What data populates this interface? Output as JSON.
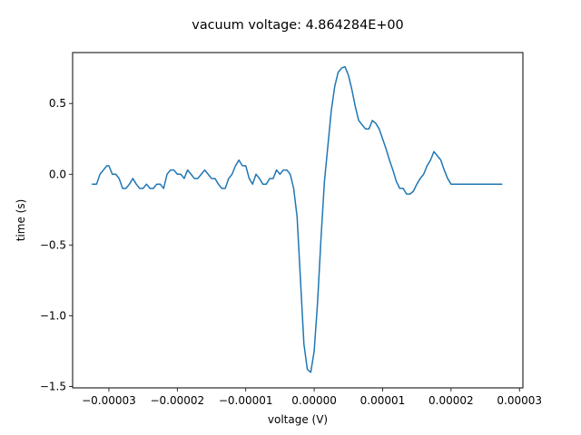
{
  "chart_data": {
    "type": "line",
    "title": "vacuum voltage: 4.864284E+00",
    "xlabel": "voltage (V)",
    "ylabel": "time (s)",
    "xlim": [
      -3.53e-05,
      3.05e-05
    ],
    "ylim": [
      -1.51,
      0.86
    ],
    "xticks": [
      -3e-05,
      -2e-05,
      -1e-05,
      0.0,
      1e-05,
      2e-05,
      3e-05
    ],
    "xtick_labels": [
      "−0.00003",
      "−0.00002",
      "−0.00001",
      "0.00000",
      "0.00001",
      "0.00002",
      "0.00003"
    ],
    "yticks": [
      -1.5,
      -1.0,
      -0.5,
      0.0,
      0.5
    ],
    "ytick_labels": [
      "−1.5",
      "−1.0",
      "−0.5",
      "0.0",
      "0.5"
    ],
    "grid": false,
    "colors": {
      "line": "#1f77b4",
      "axes": "#000000",
      "background": "#ffffff"
    },
    "series": [
      {
        "x": [
          -3.25e-05,
          -3.18e-05,
          -3.13e-05,
          -3.08e-05,
          -3.03e-05,
          -3e-05,
          -2.95e-05,
          -2.9e-05,
          -2.85e-05,
          -2.8e-05,
          -2.75e-05,
          -2.7e-05,
          -2.65e-05,
          -2.6e-05,
          -2.55e-05,
          -2.5e-05,
          -2.45e-05,
          -2.4e-05,
          -2.35e-05,
          -2.3e-05,
          -2.25e-05,
          -2.2e-05,
          -2.15e-05,
          -2.1e-05,
          -2.05e-05,
          -2e-05,
          -1.95e-05,
          -1.9e-05,
          -1.85e-05,
          -1.8e-05,
          -1.75e-05,
          -1.7e-05,
          -1.65e-05,
          -1.6e-05,
          -1.55e-05,
          -1.5e-05,
          -1.45e-05,
          -1.4e-05,
          -1.35e-05,
          -1.3e-05,
          -1.25e-05,
          -1.2e-05,
          -1.15e-05,
          -1.1e-05,
          -1.05e-05,
          -1e-05,
          -9.5e-06,
          -9e-06,
          -8.5e-06,
          -8e-06,
          -7.5e-06,
          -7e-06,
          -6.5e-06,
          -6e-06,
          -5.5e-06,
          -5e-06,
          -4.5e-06,
          -4e-06,
          -3.5e-06,
          -3e-06,
          -2.5e-06,
          -2e-06,
          -1.5e-06,
          -1e-06,
          -5e-07,
          0.0,
          5e-07,
          1e-06,
          1.5e-06,
          2e-06,
          2.5e-06,
          3e-06,
          3.5e-06,
          4e-06,
          4.5e-06,
          5e-06,
          5.5e-06,
          6e-06,
          6.5e-06,
          7e-06,
          7.5e-06,
          8e-06,
          8.5e-06,
          9e-06,
          9.5e-06,
          1e-05,
          1.05e-05,
          1.1e-05,
          1.15e-05,
          1.2e-05,
          1.25e-05,
          1.3e-05,
          1.35e-05,
          1.4e-05,
          1.45e-05,
          1.5e-05,
          1.55e-05,
          1.6e-05,
          1.65e-05,
          1.7e-05,
          1.75e-05,
          1.8e-05,
          1.85e-05,
          1.9e-05,
          1.95e-05,
          2e-05,
          2.05e-05,
          2.1e-05,
          2.15e-05,
          2.2e-05,
          2.25e-05,
          2.3e-05,
          2.35e-05,
          2.4e-05,
          2.45e-05,
          2.5e-05,
          2.55e-05,
          2.6e-05,
          2.65e-05,
          2.7e-05,
          2.75e-05
        ],
        "y": [
          -0.07,
          -0.07,
          0.0,
          0.03,
          0.06,
          0.06,
          0.0,
          0.0,
          -0.03,
          -0.1,
          -0.1,
          -0.07,
          -0.03,
          -0.07,
          -0.1,
          -0.1,
          -0.07,
          -0.1,
          -0.1,
          -0.07,
          -0.07,
          -0.1,
          0.0,
          0.03,
          0.03,
          0.0,
          0.0,
          -0.03,
          0.03,
          0.0,
          -0.03,
          -0.03,
          0.0,
          0.03,
          0.0,
          -0.03,
          -0.03,
          -0.07,
          -0.1,
          -0.1,
          -0.03,
          0.0,
          0.06,
          0.1,
          0.06,
          0.06,
          -0.03,
          -0.07,
          0.0,
          -0.03,
          -0.07,
          -0.07,
          -0.03,
          -0.03,
          0.03,
          0.0,
          0.03,
          0.03,
          0.0,
          -0.1,
          -0.3,
          -0.75,
          -1.2,
          -1.38,
          -1.4,
          -1.25,
          -0.9,
          -0.45,
          -0.05,
          0.2,
          0.45,
          0.62,
          0.72,
          0.75,
          0.76,
          0.7,
          0.6,
          0.48,
          0.38,
          0.35,
          0.32,
          0.32,
          0.38,
          0.36,
          0.32,
          0.25,
          0.18,
          0.1,
          0.03,
          -0.05,
          -0.1,
          -0.1,
          -0.14,
          -0.14,
          -0.12,
          -0.07,
          -0.03,
          0.0,
          0.06,
          0.1,
          0.16,
          0.13,
          0.1,
          0.03,
          -0.03,
          -0.07,
          -0.07,
          -0.07,
          -0.07,
          -0.07,
          -0.07,
          -0.07,
          -0.07,
          -0.07,
          -0.07,
          -0.07,
          -0.07,
          -0.07,
          -0.07,
          -0.07,
          -0.07
        ]
      }
    ]
  }
}
